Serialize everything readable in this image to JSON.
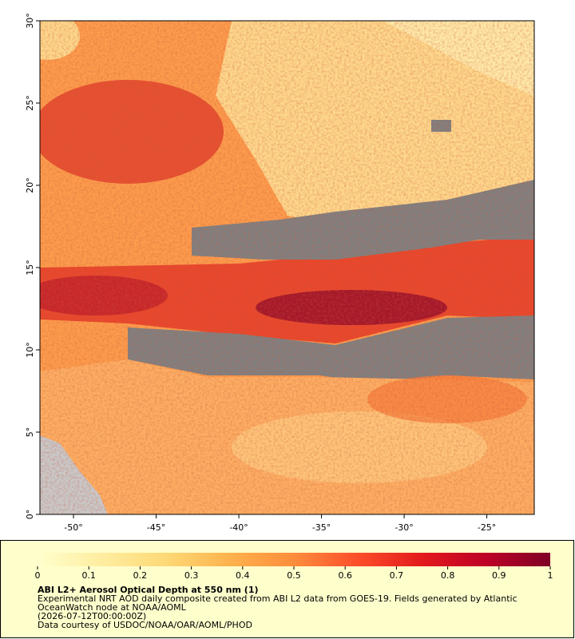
{
  "map": {
    "xlim": [
      -52.03,
      -22.13
    ],
    "ylim": [
      0,
      30
    ],
    "xticks": [
      {
        "value": -50,
        "label": "-50°"
      },
      {
        "value": -45,
        "label": "-45°"
      },
      {
        "value": -40,
        "label": "-40°"
      },
      {
        "value": -35,
        "label": "-35°"
      },
      {
        "value": -30,
        "label": "-30°"
      },
      {
        "value": -25,
        "label": "-25°"
      }
    ],
    "yticks": [
      {
        "value": 0,
        "label": "0°"
      },
      {
        "value": 5,
        "label": "5°"
      },
      {
        "value": 10,
        "label": "10°"
      },
      {
        "value": 15,
        "label": "15°"
      },
      {
        "value": 20,
        "label": "20°"
      },
      {
        "value": 25,
        "label": "25°"
      },
      {
        "value": 30,
        "label": "30°"
      }
    ]
  },
  "colorbar": {
    "lim": [
      0,
      1
    ],
    "ticks": [
      0,
      0.1,
      0.2,
      0.3,
      0.4,
      0.5,
      0.6,
      0.7,
      0.8,
      0.9,
      1
    ],
    "colors": [
      "#ffffcc",
      "#ffeda0",
      "#fed976",
      "#feb24c",
      "#fd8d3c",
      "#fc4e2a",
      "#e31a1c",
      "#bd0026",
      "#800026"
    ]
  },
  "caption": {
    "title": "ABI L2+ Aerosol Optical Depth at 550 nm (1)",
    "lines": [
      "Experimental NRT AOD daily composite created from ABI L2 data from GOES-19. Fields generated by Atlantic",
      "OceanWatch node at NOAA/AOML",
      "(2026-07-12T00:00:00Z)",
      "Data courtesy of USDOC/NOAA/OAR/AOML/PHOD"
    ]
  }
}
